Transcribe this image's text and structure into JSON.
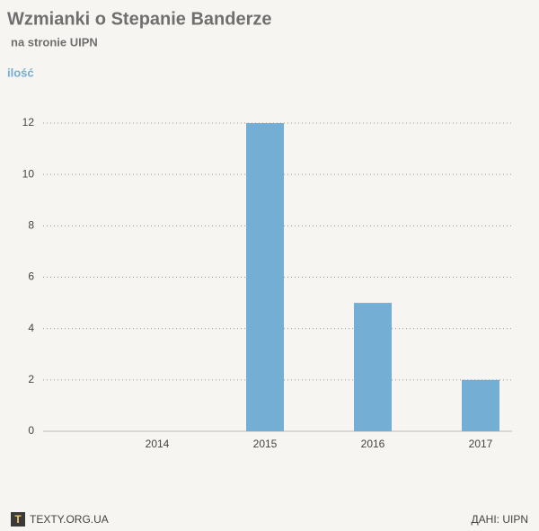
{
  "chart_data": {
    "type": "bar",
    "title": "Wzmianki o Stepanie Banderze",
    "subtitle": "na stronie UIPN",
    "y_label": "ilość",
    "categories": [
      "2014",
      "2015",
      "2016",
      "2017"
    ],
    "values": [
      0,
      12,
      5,
      2
    ],
    "color": "#74aed4",
    "ylim": [
      0,
      12
    ],
    "yticks": [
      0,
      2,
      4,
      6,
      8,
      10,
      12
    ],
    "grid": true
  },
  "footer": {
    "logo": "T",
    "source_site": "TEXTY.ORG.UA",
    "data_source": "ДАНІ: UIPN"
  }
}
